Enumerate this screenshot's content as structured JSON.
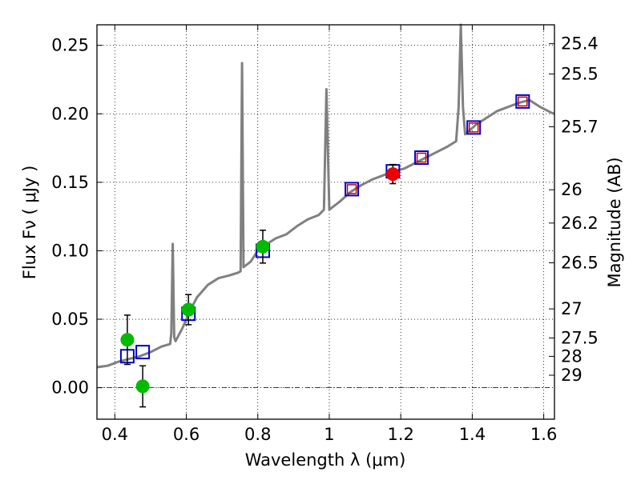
{
  "chart_data": {
    "type": "scatter",
    "xlabel": "Wavelength  λ (μm)",
    "ylabel": "Flux  Fν  ( μJy )",
    "ylabel_right": "Magnitude (AB)",
    "xlim": [
      0.35,
      1.63
    ],
    "ylim": [
      -0.023,
      0.265
    ],
    "grid": true,
    "zero_line": 0,
    "x_ticks": [
      {
        "value": 0.4,
        "label": "0.4"
      },
      {
        "value": 0.6,
        "label": "0.6"
      },
      {
        "value": 0.8,
        "label": "0.8"
      },
      {
        "value": 1.0,
        "label": "1"
      },
      {
        "value": 1.2,
        "label": "1.2"
      },
      {
        "value": 1.4,
        "label": "1.4"
      },
      {
        "value": 1.6,
        "label": "1.6"
      }
    ],
    "y_ticks": [
      {
        "value": 0.0,
        "label": "0.00"
      },
      {
        "value": 0.05,
        "label": "0.05"
      },
      {
        "value": 0.1,
        "label": "0.10"
      },
      {
        "value": 0.15,
        "label": "0.15"
      },
      {
        "value": 0.2,
        "label": "0.20"
      },
      {
        "value": 0.25,
        "label": "0.25"
      }
    ],
    "right_ticks": [
      {
        "mag": 25.4,
        "label": "25.4"
      },
      {
        "mag": 25.5,
        "label": "25.5"
      },
      {
        "mag": 25.7,
        "label": "25.7"
      },
      {
        "mag": 26.0,
        "label": "26"
      },
      {
        "mag": 26.2,
        "label": "26.2"
      },
      {
        "mag": 26.5,
        "label": "26.5"
      },
      {
        "mag": 27.0,
        "label": "27"
      },
      {
        "mag": 27.5,
        "label": "27.5"
      },
      {
        "mag": 28.0,
        "label": "28"
      },
      {
        "mag": 29.0,
        "label": "29"
      }
    ],
    "series": [
      {
        "name": "model_spectrum",
        "kind": "line",
        "color": "#808080",
        "points": [
          [
            0.35,
            0.015
          ],
          [
            0.38,
            0.016
          ],
          [
            0.41,
            0.019
          ],
          [
            0.44,
            0.021
          ],
          [
            0.47,
            0.023
          ],
          [
            0.5,
            0.026
          ],
          [
            0.53,
            0.03
          ],
          [
            0.555,
            0.032
          ],
          [
            0.558,
            0.04
          ],
          [
            0.562,
            0.105
          ],
          [
            0.566,
            0.037
          ],
          [
            0.57,
            0.034
          ],
          [
            0.59,
            0.044
          ],
          [
            0.61,
            0.056
          ],
          [
            0.63,
            0.066
          ],
          [
            0.66,
            0.075
          ],
          [
            0.69,
            0.08
          ],
          [
            0.72,
            0.082
          ],
          [
            0.745,
            0.084
          ],
          [
            0.752,
            0.085
          ],
          [
            0.756,
            0.237
          ],
          [
            0.76,
            0.088
          ],
          [
            0.78,
            0.092
          ],
          [
            0.8,
            0.1
          ],
          [
            0.82,
            0.104
          ],
          [
            0.85,
            0.109
          ],
          [
            0.88,
            0.112
          ],
          [
            0.91,
            0.118
          ],
          [
            0.94,
            0.123
          ],
          [
            0.97,
            0.126
          ],
          [
            0.985,
            0.13
          ],
          [
            0.992,
            0.218
          ],
          [
            1.0,
            0.13
          ],
          [
            1.03,
            0.136
          ],
          [
            1.06,
            0.143
          ],
          [
            1.09,
            0.148
          ],
          [
            1.12,
            0.152
          ],
          [
            1.15,
            0.155
          ],
          [
            1.18,
            0.158
          ],
          [
            1.21,
            0.16
          ],
          [
            1.24,
            0.164
          ],
          [
            1.27,
            0.168
          ],
          [
            1.3,
            0.172
          ],
          [
            1.33,
            0.176
          ],
          [
            1.355,
            0.18
          ],
          [
            1.362,
            0.205
          ],
          [
            1.368,
            0.265
          ],
          [
            1.374,
            0.205
          ],
          [
            1.38,
            0.185
          ],
          [
            1.41,
            0.192
          ],
          [
            1.44,
            0.197
          ],
          [
            1.47,
            0.202
          ],
          [
            1.5,
            0.205
          ],
          [
            1.53,
            0.208
          ],
          [
            1.56,
            0.21
          ],
          [
            1.59,
            0.205
          ],
          [
            1.62,
            0.201
          ],
          [
            1.63,
            0.2
          ]
        ]
      },
      {
        "name": "model_photometry",
        "kind": "open_square",
        "color": "#0000cc",
        "points": [
          [
            0.435,
            0.023
          ],
          [
            0.478,
            0.026
          ],
          [
            0.606,
            0.054
          ],
          [
            0.814,
            0.1
          ],
          [
            1.063,
            0.145
          ],
          [
            1.178,
            0.158
          ],
          [
            1.258,
            0.168
          ],
          [
            1.404,
            0.19
          ],
          [
            1.541,
            0.209
          ]
        ]
      },
      {
        "name": "observed_red_squares",
        "kind": "open_square_small",
        "color": "#cc0000",
        "points": [
          [
            1.063,
            0.145
          ],
          [
            1.258,
            0.168
          ],
          [
            1.404,
            0.19
          ],
          [
            1.541,
            0.209
          ]
        ]
      },
      {
        "name": "observed_optical",
        "kind": "filled_circle",
        "color": "#00bb00",
        "points": [
          {
            "x": 0.435,
            "y": 0.035,
            "err": 0.018
          },
          {
            "x": 0.478,
            "y": 0.001,
            "err": 0.015
          },
          {
            "x": 0.606,
            "y": 0.057,
            "err": 0.011
          },
          {
            "x": 0.814,
            "y": 0.103,
            "err": 0.012
          }
        ]
      },
      {
        "name": "observed_nir",
        "kind": "filled_circle",
        "color": "#ee0000",
        "points": [
          {
            "x": 1.178,
            "y": 0.156,
            "err": 0.007
          }
        ]
      }
    ]
  }
}
